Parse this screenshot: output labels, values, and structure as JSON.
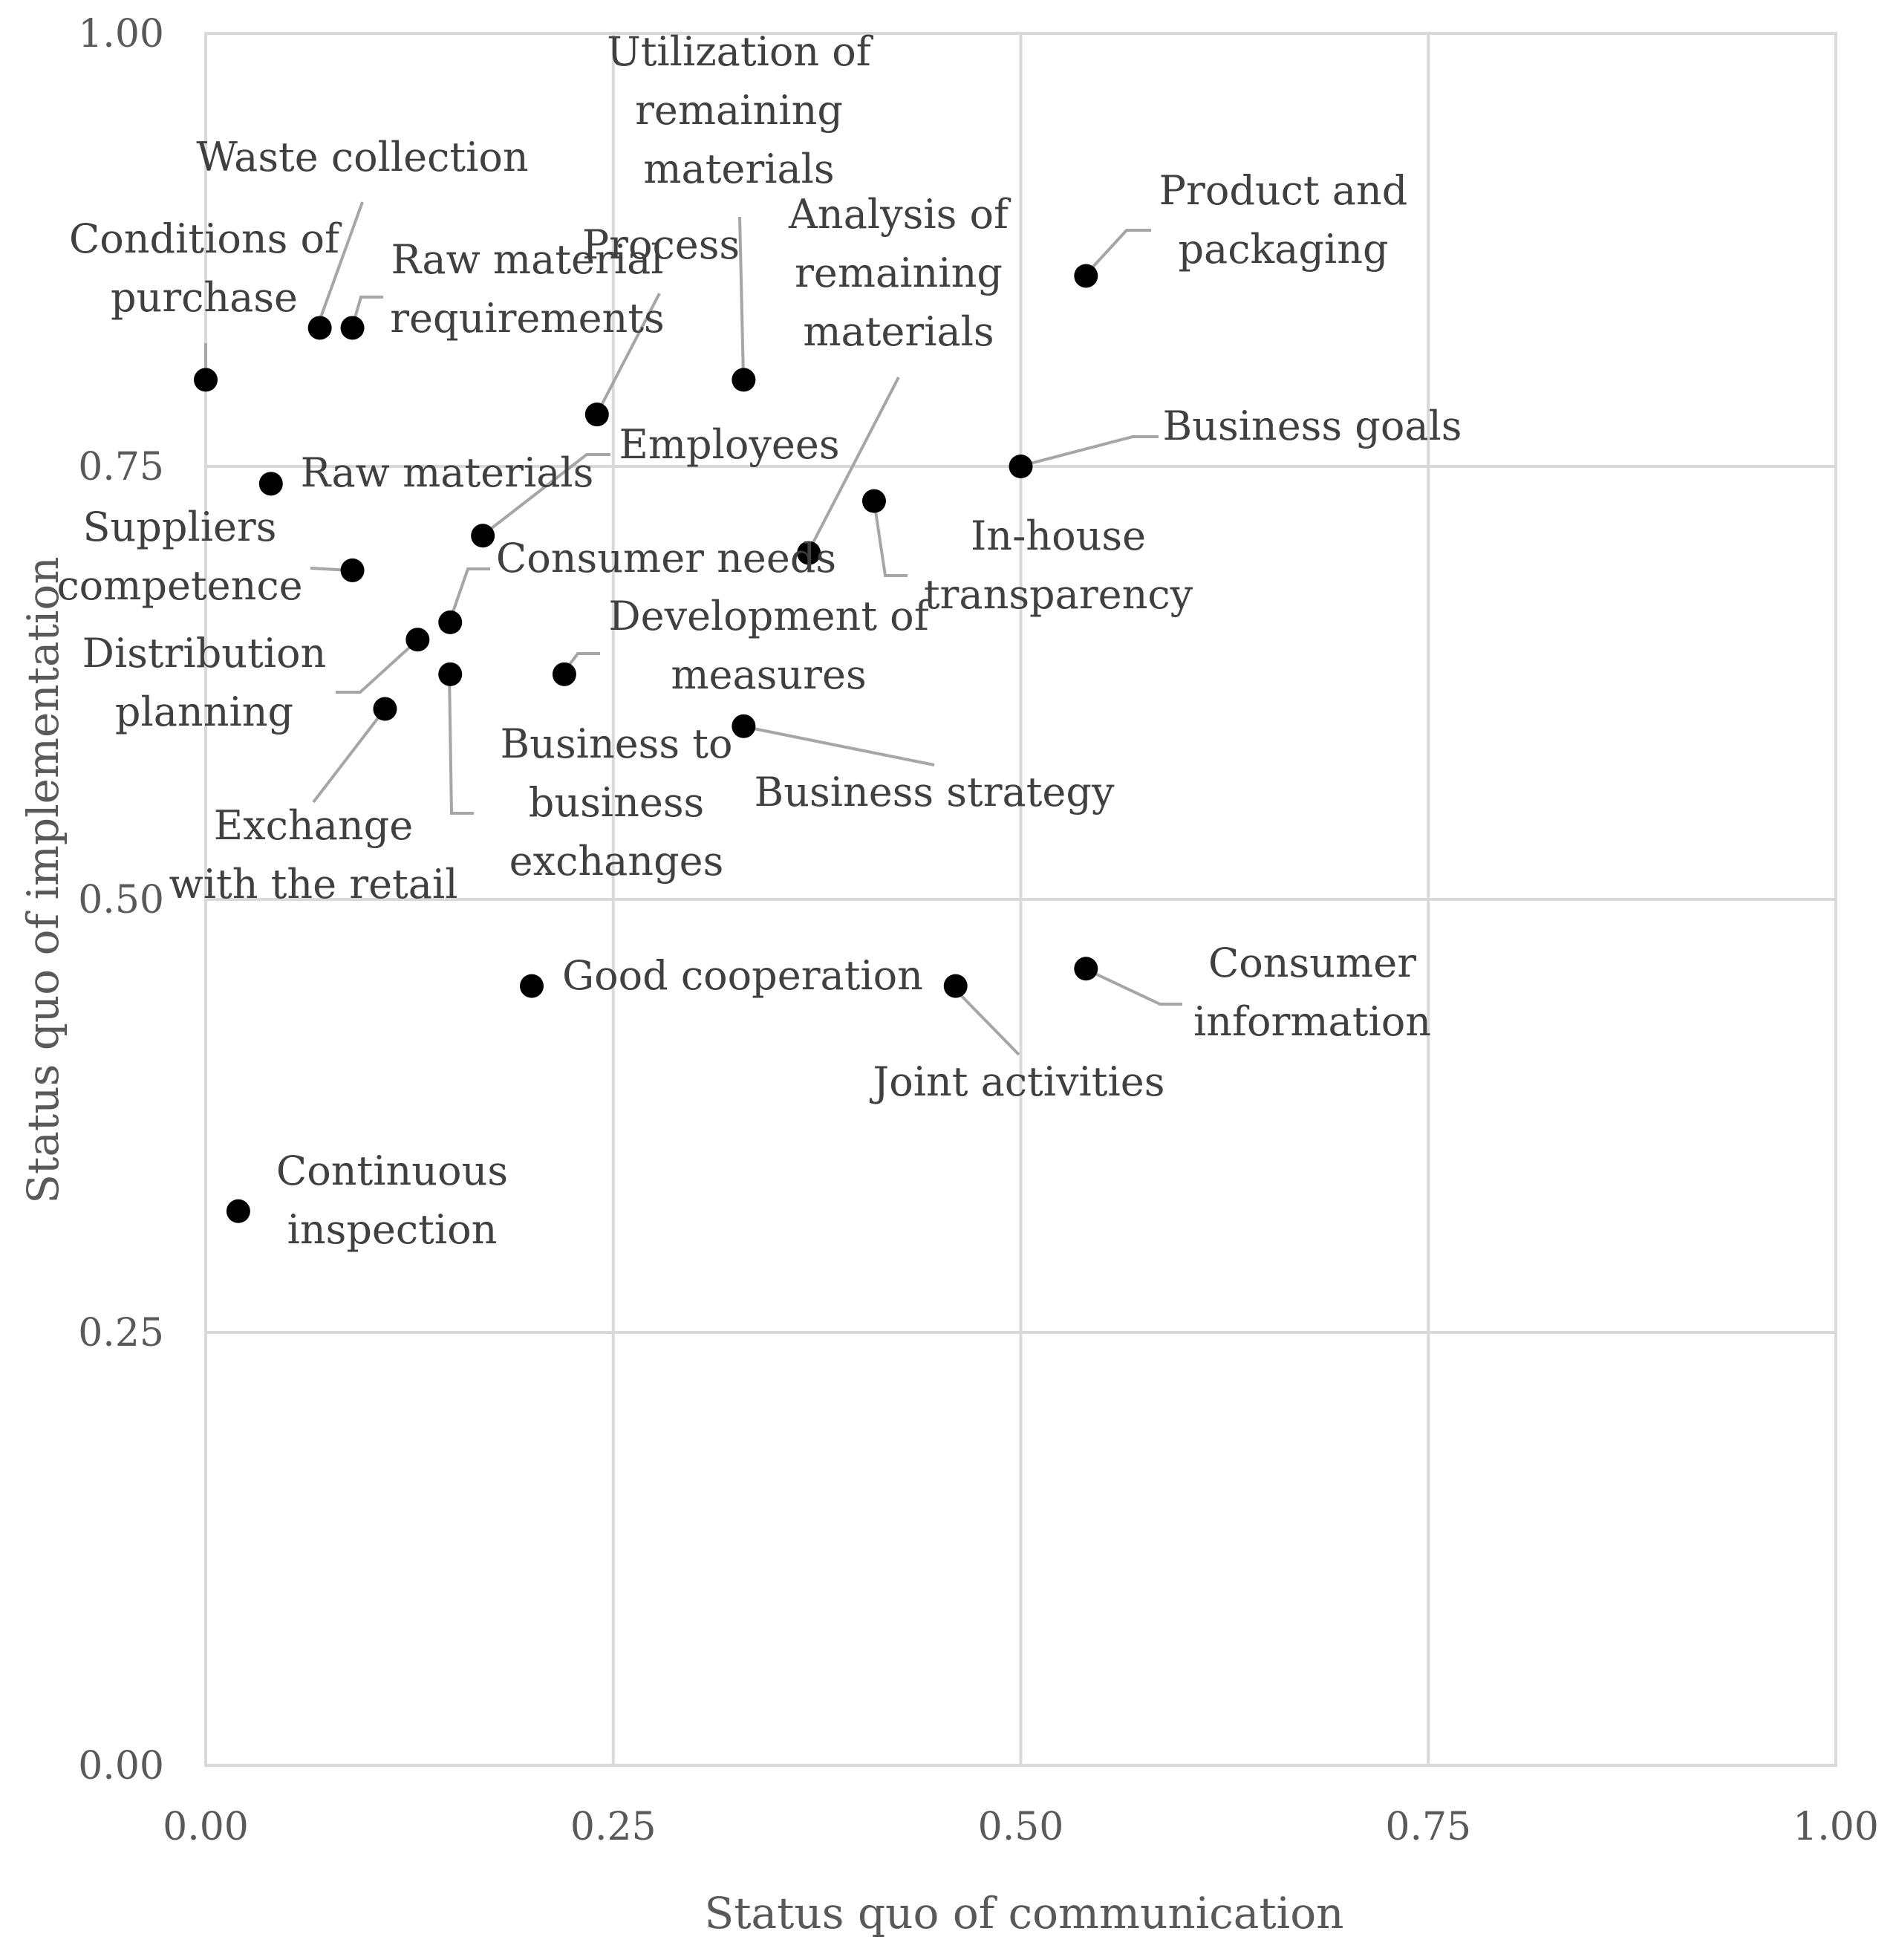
{
  "chart_data": {
    "type": "scatter",
    "title": "",
    "xlabel": "Status quo of communication",
    "ylabel": "Status quo of implementation",
    "xlim": [
      0,
      1
    ],
    "ylim": [
      0,
      1
    ],
    "x_ticks": [
      "0.00",
      "0.25",
      "0.50",
      "0.75",
      "1.00"
    ],
    "y_ticks": [
      "0.00",
      "0.25",
      "0.50",
      "0.75",
      "1.00"
    ],
    "grid": true,
    "points": [
      {
        "label": "Conditions of purchase",
        "x": 0.0,
        "y": 0.8
      },
      {
        "label": "Waste collection",
        "x": 0.07,
        "y": 0.83
      },
      {
        "label": "Raw material requirements",
        "x": 0.09,
        "y": 0.83
      },
      {
        "label": "Process",
        "x": 0.24,
        "y": 0.78
      },
      {
        "label": "Utilization of remaining materials",
        "x": 0.33,
        "y": 0.8
      },
      {
        "label": "Analysis of remaining materials",
        "x": 0.37,
        "y": 0.7
      },
      {
        "label": "Product and packaging",
        "x": 0.54,
        "y": 0.86
      },
      {
        "label": "Business goals",
        "x": 0.5,
        "y": 0.75
      },
      {
        "label": "In-house transparency",
        "x": 0.41,
        "y": 0.73
      },
      {
        "label": "Raw materials",
        "x": 0.04,
        "y": 0.74
      },
      {
        "label": "Employees",
        "x": 0.17,
        "y": 0.71
      },
      {
        "label": "Suppliers competence",
        "x": 0.09,
        "y": 0.69
      },
      {
        "label": "Consumer needs",
        "x": 0.15,
        "y": 0.66
      },
      {
        "label": "Distribution planning",
        "x": 0.13,
        "y": 0.65
      },
      {
        "label": "Development of measures",
        "x": 0.22,
        "y": 0.63
      },
      {
        "label": "Business to business exchanges",
        "x": 0.15,
        "y": 0.63
      },
      {
        "label": "Exchange with the retail",
        "x": 0.11,
        "y": 0.61
      },
      {
        "label": "Business strategy",
        "x": 0.33,
        "y": 0.6
      },
      {
        "label": "Good cooperation",
        "x": 0.2,
        "y": 0.45
      },
      {
        "label": "Joint activities",
        "x": 0.46,
        "y": 0.45
      },
      {
        "label": "Consumer information",
        "x": 0.54,
        "y": 0.46
      },
      {
        "label": "Continuous inspection",
        "x": 0.02,
        "y": 0.32
      }
    ]
  }
}
